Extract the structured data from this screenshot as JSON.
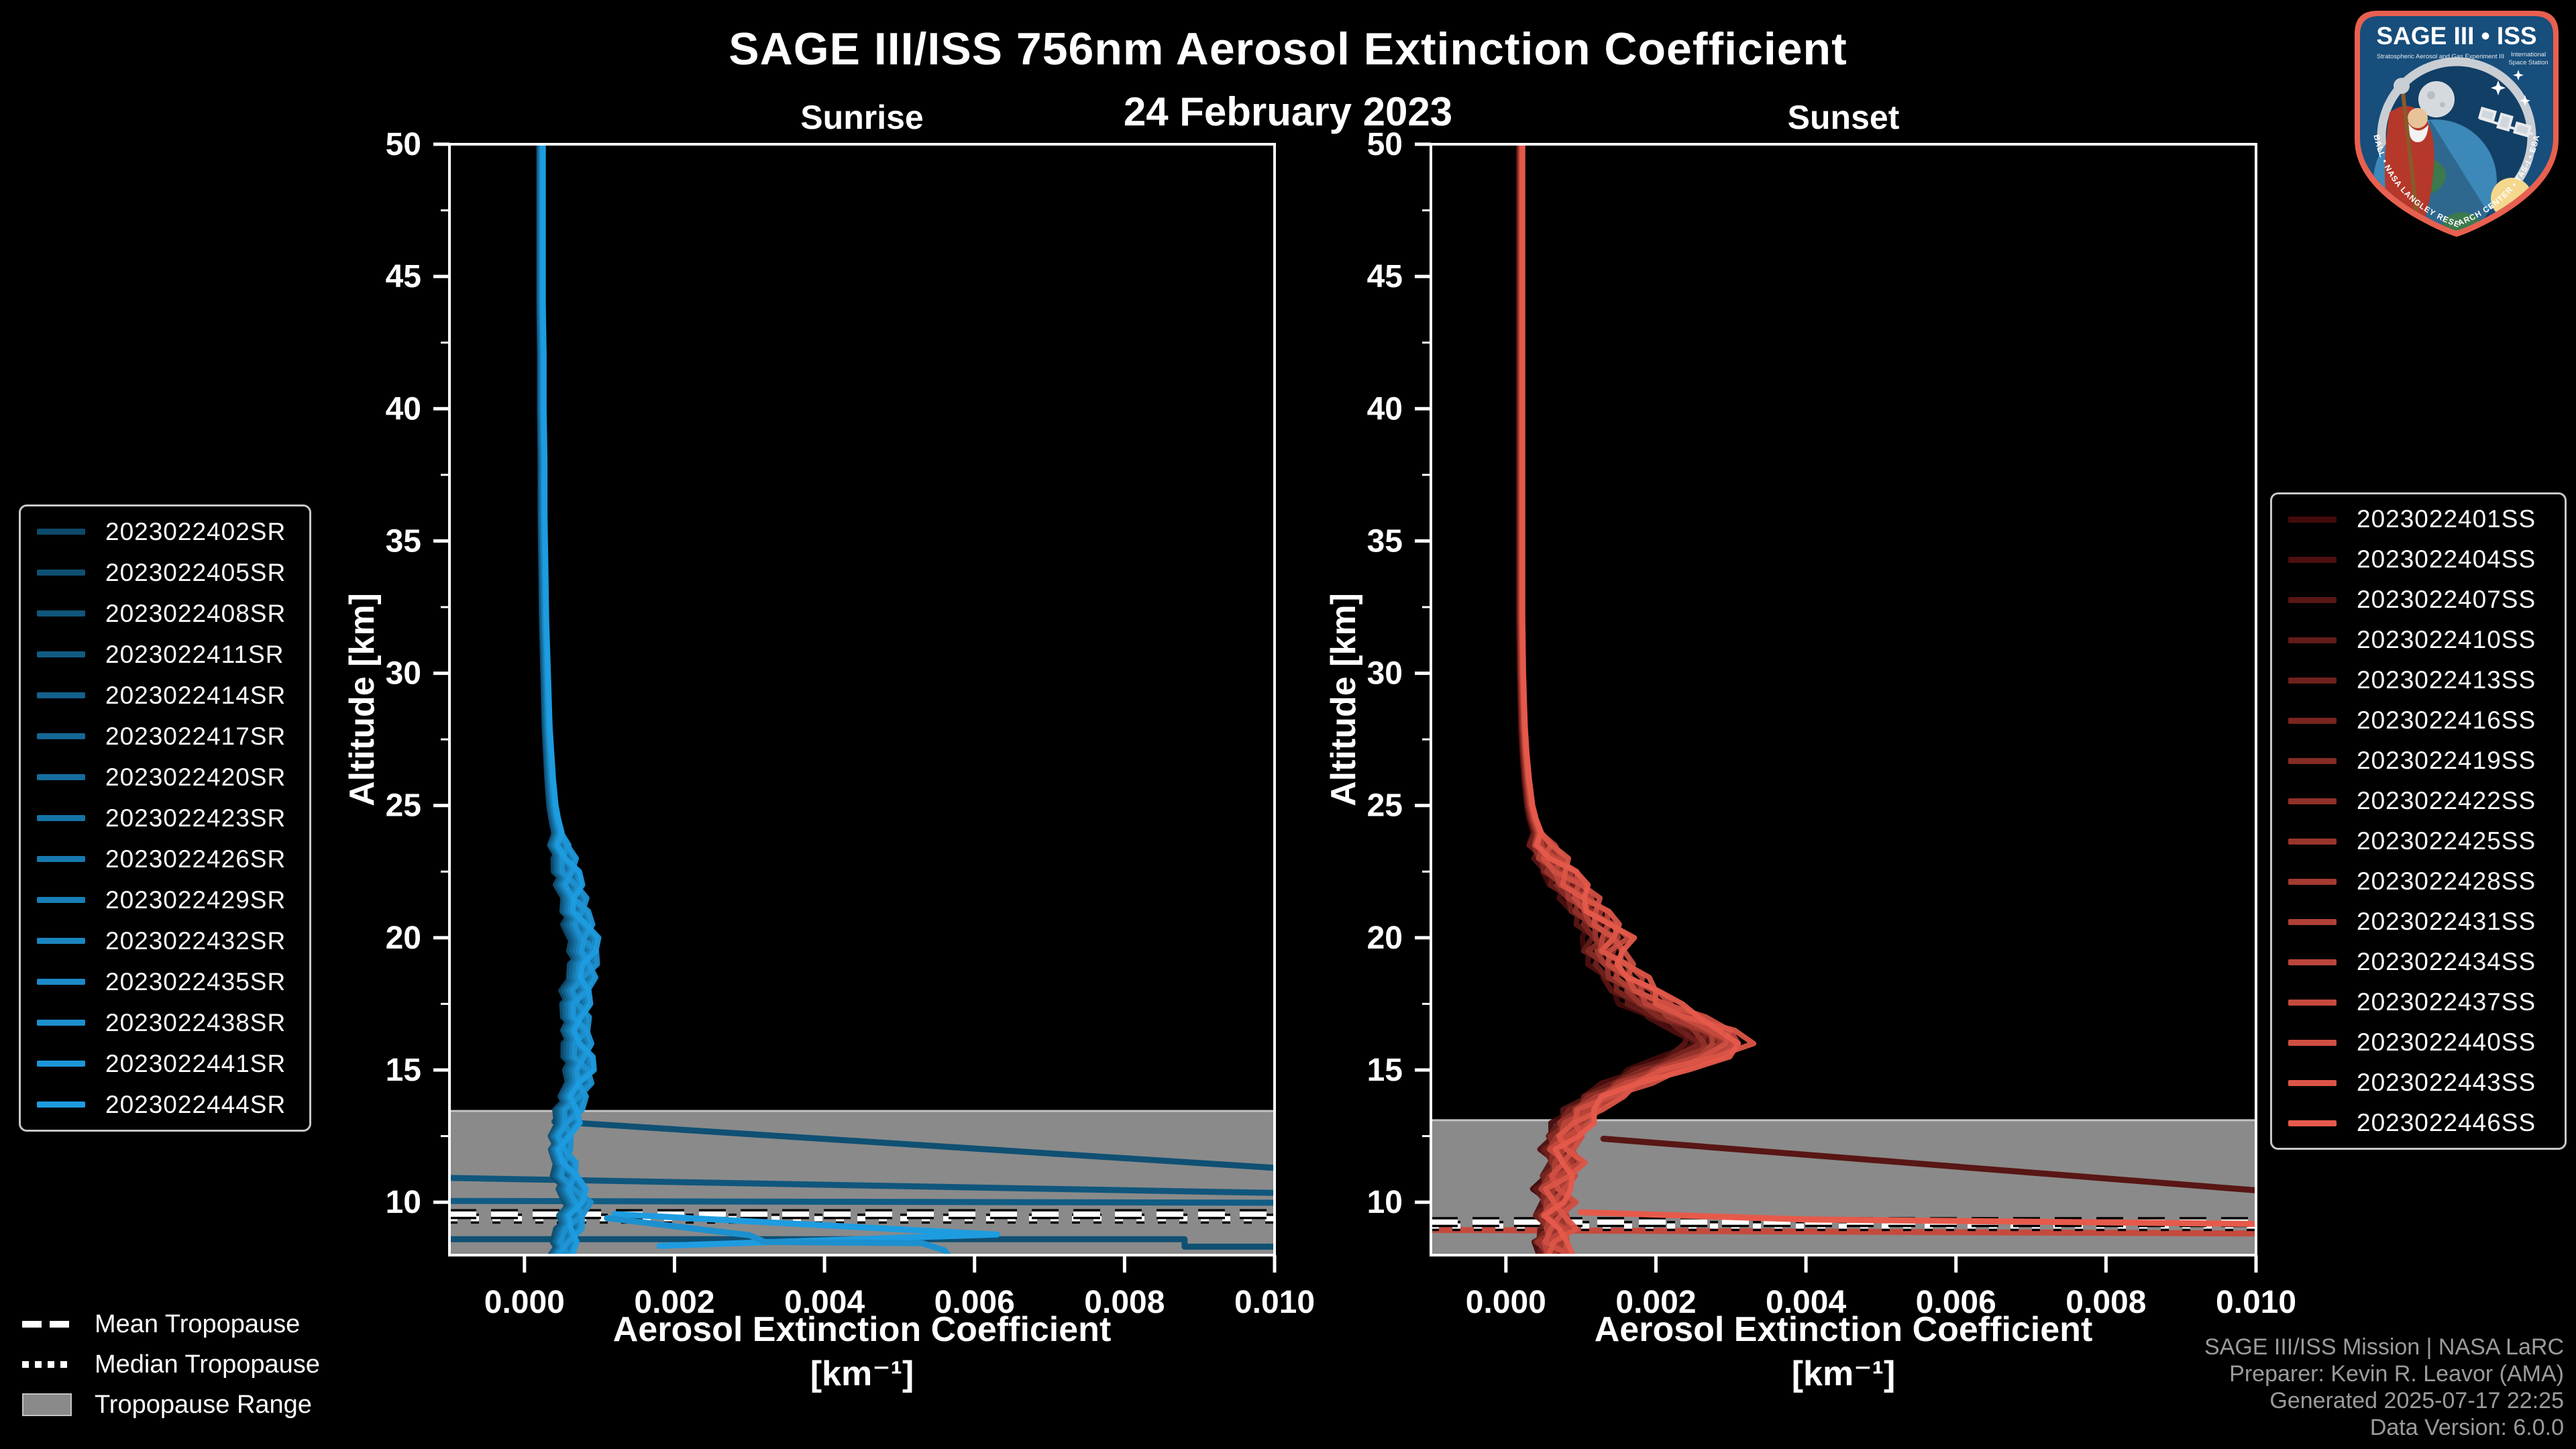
{
  "header": {
    "title": "SAGE III/ISS 756nm Aerosol Extinction Coefficient",
    "date": "24 February 2023"
  },
  "axes": {
    "xlabel_line1": "Aerosol Extinction Coefficient",
    "xlabel_line2": "[km⁻¹]",
    "ylabel": "Altitude [km]"
  },
  "tropopause_legend": {
    "mean_label": "Mean Tropopause",
    "median_label": "Median Tropopause",
    "range_label": "Tropopause Range"
  },
  "watermark": {
    "lines": [
      "SAGE III/ISS Mission | NASA LaRC",
      "Preparer: Kevin R. Leavor (AMA)",
      "Generated 2025-07-17 22:25",
      "Data Version: 6.0.0"
    ]
  },
  "logo": {
    "title": "SAGE III • ISS",
    "sub_left": "Stratospheric Aerosol and Gas Experiment III",
    "sub_right1": "International",
    "sub_right2": "Space Station",
    "edge_text": "BALL • NASA LANGLEY RESEARCH CENTER • TAS-I • ESA"
  },
  "chart_data": [
    {
      "type": "line",
      "title": "Sunrise",
      "xlabel": "Aerosol Extinction Coefficient [km^-1]",
      "ylabel": "Altitude [km]",
      "xlim": [
        -0.001,
        0.01
      ],
      "ylim": [
        8,
        50
      ],
      "x_ticks": {
        "values": [
          0.0,
          0.002,
          0.004,
          0.006,
          0.008,
          0.01
        ],
        "labels": [
          "0.000",
          "0.002",
          "0.004",
          "0.006",
          "0.008",
          "0.010"
        ]
      },
      "y_ticks": {
        "values": [
          50,
          45,
          40,
          35,
          30,
          25,
          20,
          15,
          10
        ],
        "labels": [
          "50",
          "45",
          "40",
          "35",
          "30",
          "25",
          "20",
          "15",
          "10"
        ]
      },
      "y_minor_ticks": [
        47.5,
        42.5,
        37.5,
        32.5,
        27.5,
        22.5,
        17.5,
        12.5
      ],
      "grid": false,
      "legend_position": "outside-left",
      "colors": {
        "band": "#8A8A8A",
        "band_edge": "#C4C4C4",
        "frame": "#FFFFFF"
      },
      "tropopause": {
        "range_top_km": 13.45,
        "mean_km": 9.55,
        "median_km": 9.38
      },
      "base_altitude_km": [
        50,
        48,
        46,
        44,
        42,
        40,
        38,
        36,
        34,
        32,
        30,
        29,
        28,
        27,
        26,
        25,
        24.5,
        24,
        23.5,
        23,
        22.5,
        22,
        21.5,
        21,
        20.5,
        20,
        19.5,
        19,
        18.5,
        18,
        17.5,
        17,
        16.5,
        16,
        15.5,
        15,
        14.5,
        14,
        13.5,
        13,
        12.5,
        12,
        11.5,
        11,
        10.5,
        10,
        9.5,
        9,
        8.5,
        8
      ],
      "base_extinction": [
        0.00022,
        0.00022,
        0.00022,
        0.00022,
        0.00023,
        0.00023,
        0.00024,
        0.00024,
        0.00025,
        0.00026,
        0.00028,
        0.00029,
        0.0003,
        0.00032,
        0.00034,
        0.00037,
        0.0004,
        0.00044,
        0.00048,
        0.00052,
        0.00056,
        0.0006,
        0.00064,
        0.00068,
        0.00072,
        0.00076,
        0.0008,
        0.00078,
        0.00074,
        0.0007,
        0.00067,
        0.00068,
        0.0007,
        0.00069,
        0.00071,
        0.00074,
        0.0007,
        0.00065,
        0.0006,
        0.00055,
        0.0005,
        0.00048,
        0.00052,
        0.00056,
        0.00062,
        0.0007,
        0.00064,
        0.00058,
        0.00053,
        0.0005
      ],
      "wiggle_amp": 0.00013,
      "wiggle_freq": 2.7,
      "wiggle_below_km": 24,
      "series": [
        {
          "name": "2023022402SR",
          "color": "#0E4A6B",
          "scale": 0.88,
          "phase": 0.0
        },
        {
          "name": "2023022405SR",
          "color": "#0F5073",
          "scale": 0.898,
          "phase": 2.1
        },
        {
          "name": "2023022408SR",
          "color": "#10567C",
          "scale": 0.916,
          "phase": 4.2
        },
        {
          "name": "2023022411SR",
          "color": "#115C84",
          "scale": 0.934,
          "phase": 6.3
        },
        {
          "name": "2023022414SR",
          "color": "#13618C",
          "scale": 0.952,
          "phase": 8.4
        },
        {
          "name": "2023022417SR",
          "color": "#146795",
          "scale": 0.97,
          "phase": 10.5
        },
        {
          "name": "2023022420SR",
          "color": "#156D9D",
          "scale": 0.988,
          "phase": 12.6
        },
        {
          "name": "2023022423SR",
          "color": "#1673A6",
          "scale": 1.006,
          "phase": 14.7
        },
        {
          "name": "2023022426SR",
          "color": "#1779AE",
          "scale": 1.024,
          "phase": 16.8
        },
        {
          "name": "2023022429SR",
          "color": "#187FB6",
          "scale": 1.042,
          "phase": 18.9
        },
        {
          "name": "2023022432SR",
          "color": "#1A85BF",
          "scale": 1.06,
          "phase": 21.0
        },
        {
          "name": "2023022435SR",
          "color": "#1B8AC7",
          "scale": 1.078,
          "phase": 23.1
        },
        {
          "name": "2023022438SR",
          "color": "#1C90CF",
          "scale": 1.096,
          "phase": 25.2
        },
        {
          "name": "2023022441SR",
          "color": "#1D96D8",
          "scale": 1.114,
          "phase": 27.3
        },
        {
          "name": "2023022444SR",
          "color": "#1E9CE0",
          "scale": 1.132,
          "phase": 29.4
        }
      ],
      "extra_lines": [
        {
          "color": "#0F5073",
          "width": 9,
          "layer": "back",
          "points": [
            [
              0.0004,
              13.05
            ],
            [
              0.01,
              11.3
            ]
          ]
        },
        {
          "color": "#10567C",
          "width": 9,
          "layer": "back",
          "points": [
            [
              -0.001,
              10.92
            ],
            [
              0.01,
              10.35
            ]
          ]
        },
        {
          "color": "#115C84",
          "width": 9,
          "layer": "back",
          "points": [
            [
              -0.001,
              10.05
            ],
            [
              0.01,
              9.98
            ]
          ]
        },
        {
          "color": "#0F5073",
          "width": 9,
          "layer": "back",
          "points": [
            [
              -0.001,
              8.6
            ],
            [
              0.0088,
              8.6
            ],
            [
              0.0088,
              8.32
            ],
            [
              0.01,
              8.32
            ]
          ]
        },
        {
          "color": "#1E9CE0",
          "width": 9,
          "layer": "front",
          "points": [
            [
              0.0012,
              9.55
            ],
            [
              0.0063,
              8.78
            ],
            [
              0.0018,
              8.35
            ]
          ]
        },
        {
          "color": "#1C90CF",
          "width": 9,
          "layer": "front",
          "points": [
            [
              0.0011,
              9.4
            ],
            [
              0.003,
              8.75
            ],
            [
              0.0032,
              8.5
            ],
            [
              0.0053,
              8.45
            ],
            [
              0.0056,
              8.18
            ],
            [
              0.0057,
              7.8
            ]
          ]
        }
      ]
    },
    {
      "type": "line",
      "title": "Sunset",
      "xlabel": "Aerosol Extinction Coefficient [km^-1]",
      "ylabel": "Altitude [km]",
      "xlim": [
        -0.001,
        0.01
      ],
      "ylim": [
        8,
        50
      ],
      "x_ticks": {
        "values": [
          0.0,
          0.002,
          0.004,
          0.006,
          0.008,
          0.01
        ],
        "labels": [
          "0.000",
          "0.002",
          "0.004",
          "0.006",
          "0.008",
          "0.010"
        ]
      },
      "y_ticks": {
        "values": [
          50,
          45,
          40,
          35,
          30,
          25,
          20,
          15,
          10
        ],
        "labels": [
          "50",
          "45",
          "40",
          "35",
          "30",
          "25",
          "20",
          "15",
          "10"
        ]
      },
      "y_minor_ticks": [
        47.5,
        42.5,
        37.5,
        32.5,
        27.5,
        22.5,
        17.5,
        12.5
      ],
      "grid": false,
      "legend_position": "outside-right",
      "colors": {
        "band": "#8A8A8A",
        "band_edge": "#C4C4C4",
        "frame": "#FFFFFF"
      },
      "tropopause": {
        "range_top_km": 13.1,
        "mean_km": 9.25,
        "median_km": 9.1
      },
      "base_altitude_km": [
        50,
        48,
        46,
        44,
        42,
        40,
        38,
        36,
        34,
        32,
        30,
        29,
        28,
        27,
        26,
        25,
        24.5,
        24,
        23.5,
        23,
        22.5,
        22,
        21.5,
        21,
        20.5,
        20,
        19.5,
        19,
        18.5,
        18,
        17.5,
        17,
        16.5,
        16,
        15.5,
        15,
        14.5,
        14,
        13.5,
        13,
        12.5,
        12,
        11.5,
        11,
        10.5,
        10,
        9.5,
        9,
        8.5,
        8
      ],
      "base_extinction": [
        0.0002,
        0.0002,
        0.0002,
        0.0002,
        0.0002,
        0.0002,
        0.0002,
        0.0002,
        0.0002,
        0.0002,
        0.00021,
        0.00022,
        0.00023,
        0.00025,
        0.00028,
        0.00032,
        0.00036,
        0.00042,
        0.0005,
        0.0006,
        0.00072,
        0.00085,
        0.001,
        0.00112,
        0.00125,
        0.00138,
        0.00132,
        0.00145,
        0.00158,
        0.00175,
        0.00195,
        0.0023,
        0.0027,
        0.00285,
        0.00255,
        0.00205,
        0.00165,
        0.0013,
        0.00105,
        0.0009,
        0.0008,
        0.00072,
        0.0008,
        0.00072,
        0.00062,
        0.0007,
        0.00062,
        0.0007,
        0.0006,
        0.00068
      ],
      "wiggle_amp": 0.00018,
      "wiggle_freq": 2.7,
      "wiggle_below_km": 24,
      "series": [
        {
          "name": "2023022401SS",
          "color": "#420B0B",
          "scale": 0.86,
          "phase": 1.3
        },
        {
          "name": "2023022404SS",
          "color": "#4D100F",
          "scale": 0.877,
          "phase": 3.6
        },
        {
          "name": "2023022407SS",
          "color": "#581614",
          "scale": 0.894,
          "phase": 5.9
        },
        {
          "name": "2023022410SS",
          "color": "#631B18",
          "scale": 0.911,
          "phase": 8.2
        },
        {
          "name": "2023022413SS",
          "color": "#6E201C",
          "scale": 0.928,
          "phase": 10.5
        },
        {
          "name": "2023022416SS",
          "color": "#792520",
          "scale": 0.945,
          "phase": 12.8
        },
        {
          "name": "2023022419SS",
          "color": "#842B25",
          "scale": 0.962,
          "phase": 15.1
        },
        {
          "name": "2023022422SS",
          "color": "#8F3029",
          "scale": 0.979,
          "phase": 17.4
        },
        {
          "name": "2023022425SS",
          "color": "#99352D",
          "scale": 0.996,
          "phase": 19.7
        },
        {
          "name": "2023022428SS",
          "color": "#A43A31",
          "scale": 1.013,
          "phase": 22.0
        },
        {
          "name": "2023022431SS",
          "color": "#AF4036",
          "scale": 1.03,
          "phase": 24.3
        },
        {
          "name": "2023022434SS",
          "color": "#BA453A",
          "scale": 1.047,
          "phase": 26.6
        },
        {
          "name": "2023022437SS",
          "color": "#C54A3E",
          "scale": 1.064,
          "phase": 28.9
        },
        {
          "name": "2023022440SS",
          "color": "#D04F43",
          "scale": 1.081,
          "phase": 31.2
        },
        {
          "name": "2023022443SS",
          "color": "#DB5547",
          "scale": 1.098,
          "phase": 33.5
        },
        {
          "name": "2023022446SS",
          "color": "#E65A4B",
          "scale": 1.115,
          "phase": 35.8
        }
      ],
      "extra_lines": [
        {
          "color": "#581614",
          "width": 9,
          "layer": "back",
          "points": [
            [
              0.0013,
              12.4
            ],
            [
              0.01,
              10.45
            ]
          ]
        },
        {
          "color": "#C54A3E",
          "width": 9,
          "layer": "back",
          "points": [
            [
              -0.001,
              8.95
            ],
            [
              0.01,
              8.82
            ]
          ]
        },
        {
          "color": "#E65A4B",
          "width": 9,
          "layer": "front",
          "points": [
            [
              0.001,
              9.62
            ],
            [
              0.004,
              9.35
            ],
            [
              0.01,
              9.18
            ]
          ]
        }
      ]
    }
  ]
}
